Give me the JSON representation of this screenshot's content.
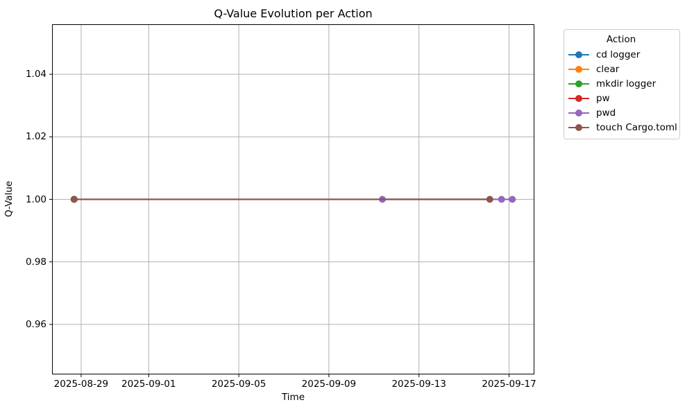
{
  "chart_data": {
    "type": "line",
    "title": "Q-Value Evolution per Action",
    "xlabel": "Time",
    "ylabel": "Q-Value",
    "xlim": [
      "2025-08-27T17:00:00",
      "2025-09-18T03:00:00"
    ],
    "ylim": [
      0.944,
      1.056
    ],
    "grid": true,
    "grid_color": "#b0b0b0",
    "spine_color": "#000000",
    "yticks": [
      {
        "label": "0.96",
        "value": 0.96
      },
      {
        "label": "0.98",
        "value": 0.98
      },
      {
        "label": "1.00",
        "value": 1.0
      },
      {
        "label": "1.02",
        "value": 1.02
      },
      {
        "label": "1.04",
        "value": 1.04
      }
    ],
    "xticks": [
      {
        "label": "2025-08-29",
        "value": "2025-08-29T00:00:00"
      },
      {
        "label": "2025-09-01",
        "value": "2025-09-01T00:00:00"
      },
      {
        "label": "2025-09-05",
        "value": "2025-09-05T00:00:00"
      },
      {
        "label": "2025-09-09",
        "value": "2025-09-09T00:00:00"
      },
      {
        "label": "2025-09-13",
        "value": "2025-09-13T00:00:00"
      },
      {
        "label": "2025-09-17",
        "value": "2025-09-17T00:00:00"
      }
    ],
    "legend": {
      "title": "Action",
      "position": "outside-upper-right",
      "entries": [
        "cd logger",
        "clear",
        "mkdir logger",
        "pw",
        "pwd",
        "touch Cargo.toml"
      ]
    },
    "series": [
      {
        "name": "cd logger",
        "color": "#1f77b4",
        "points": [
          {
            "x": "2025-08-28T16:30:00",
            "y": 1.0
          }
        ]
      },
      {
        "name": "clear",
        "color": "#ff7f0e",
        "points": [
          {
            "x": "2025-08-28T16:30:00",
            "y": 1.0
          }
        ]
      },
      {
        "name": "mkdir logger",
        "color": "#2ca02c",
        "points": [
          {
            "x": "2025-08-28T16:30:00",
            "y": 1.0
          }
        ]
      },
      {
        "name": "pw",
        "color": "#d62728",
        "points": [
          {
            "x": "2025-08-28T16:30:00",
            "y": 1.0
          }
        ]
      },
      {
        "name": "pwd",
        "color": "#9467bd",
        "points": [
          {
            "x": "2025-09-11T09:00:00",
            "y": 1.0
          },
          {
            "x": "2025-09-16T16:00:00",
            "y": 1.0
          },
          {
            "x": "2025-09-17T03:30:00",
            "y": 1.0
          }
        ]
      },
      {
        "name": "touch Cargo.toml",
        "color": "#8c564b",
        "points": [
          {
            "x": "2025-08-28T16:30:00",
            "y": 1.0
          },
          {
            "x": "2025-09-16T03:30:00",
            "y": 1.0
          }
        ]
      }
    ]
  }
}
